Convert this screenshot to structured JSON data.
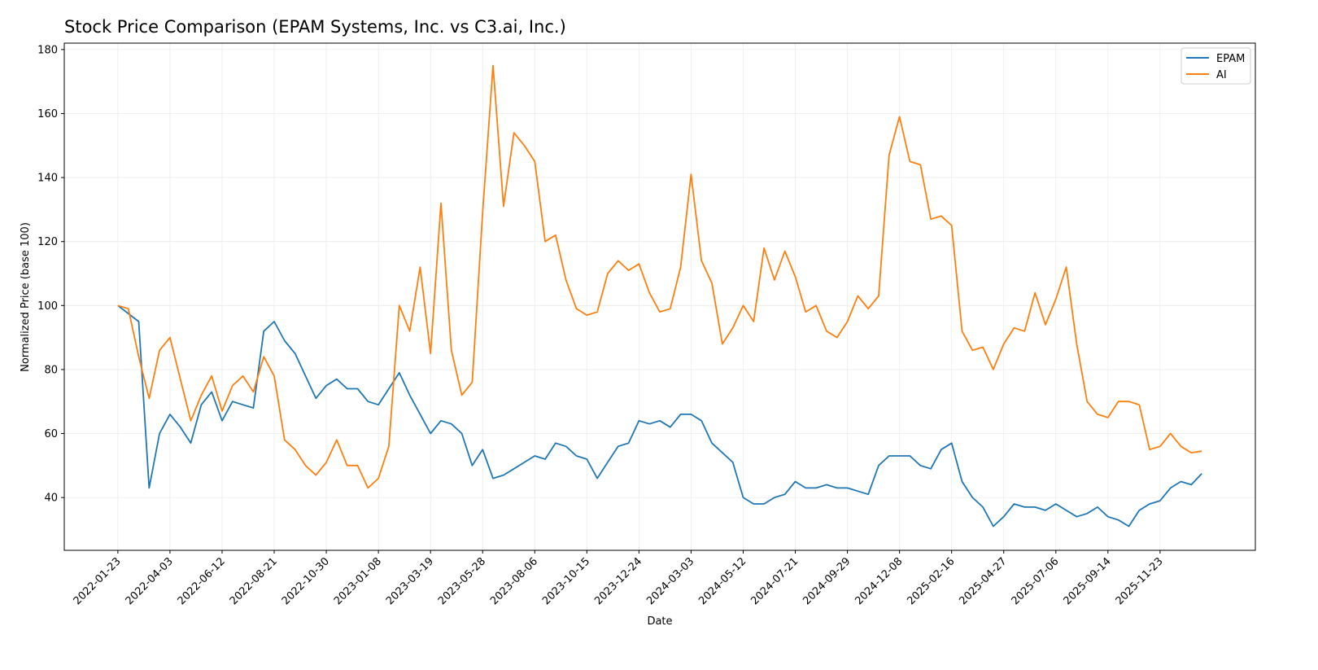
{
  "chart_data": {
    "type": "line",
    "title": "Stock Price Comparison (EPAM Systems, Inc. vs C3.ai, Inc.)",
    "xlabel": "Date",
    "ylabel": "Normalized Price (base 100)",
    "ylim": [
      23.5,
      182
    ],
    "xlim_days_from_start": [
      -72,
      1528
    ],
    "start_date": "2022-01-23",
    "interval_days": 14,
    "grid": true,
    "legend_position": "top-right",
    "x_ticks": [
      "2022-01-23",
      "2022-04-03",
      "2022-06-12",
      "2022-08-21",
      "2022-10-30",
      "2023-01-08",
      "2023-03-19",
      "2023-05-28",
      "2023-08-06",
      "2023-10-15",
      "2023-12-24",
      "2024-03-03",
      "2024-05-12",
      "2024-07-21",
      "2024-09-29",
      "2024-12-08",
      "2025-02-16",
      "2025-04-27",
      "2025-07-06",
      "2025-09-14",
      "2025-11-23"
    ],
    "y_ticks": [
      40,
      60,
      80,
      100,
      120,
      140,
      160,
      180
    ],
    "series": [
      {
        "name": "EPAM",
        "color": "#1f77b4",
        "values": [
          100,
          97.5,
          95,
          43,
          60,
          66,
          62,
          57,
          69,
          73,
          64,
          70,
          69,
          68,
          92,
          95,
          89,
          85,
          78,
          71,
          75,
          77,
          74,
          74,
          70,
          69,
          74,
          79,
          72,
          66,
          60,
          64,
          63,
          60,
          50,
          55,
          46,
          47,
          49,
          51,
          53,
          52,
          57,
          56,
          53,
          52,
          46,
          51,
          56,
          57,
          64,
          63,
          64,
          62,
          66,
          66,
          64,
          57,
          54,
          51,
          40,
          38,
          38,
          40,
          41,
          45,
          43,
          43,
          44,
          43,
          43,
          42,
          41,
          50,
          53,
          53,
          53,
          50,
          49,
          55,
          57,
          45,
          40,
          37,
          31,
          34,
          38,
          37,
          37,
          36,
          38,
          36,
          34,
          35,
          37,
          34,
          33,
          31,
          36,
          38,
          39,
          43,
          45,
          44,
          47.5
        ]
      },
      {
        "name": "AI",
        "color": "#ff7f0e",
        "values": [
          100,
          99,
          84,
          71,
          86,
          90,
          77,
          64,
          72,
          78,
          67,
          75,
          78,
          73,
          84,
          78,
          58,
          55,
          50,
          47,
          51,
          58,
          50,
          50,
          43,
          46,
          56,
          100,
          92,
          112,
          85,
          132,
          86,
          72,
          76,
          129,
          175,
          131,
          154,
          150,
          145,
          120,
          122,
          108,
          99,
          97,
          98,
          110,
          114,
          111,
          113,
          104,
          98,
          99,
          112,
          141,
          114,
          107,
          88,
          93,
          100,
          95,
          118,
          108,
          117,
          109,
          98,
          100,
          92,
          90,
          95,
          103,
          99,
          103,
          147,
          159,
          145,
          144,
          127,
          128,
          125,
          92,
          86,
          87,
          80,
          88,
          93,
          92,
          104,
          94,
          102,
          112,
          88,
          70,
          66,
          65,
          70,
          70,
          69,
          55,
          56,
          60,
          56,
          54,
          54.5
        ]
      }
    ]
  }
}
